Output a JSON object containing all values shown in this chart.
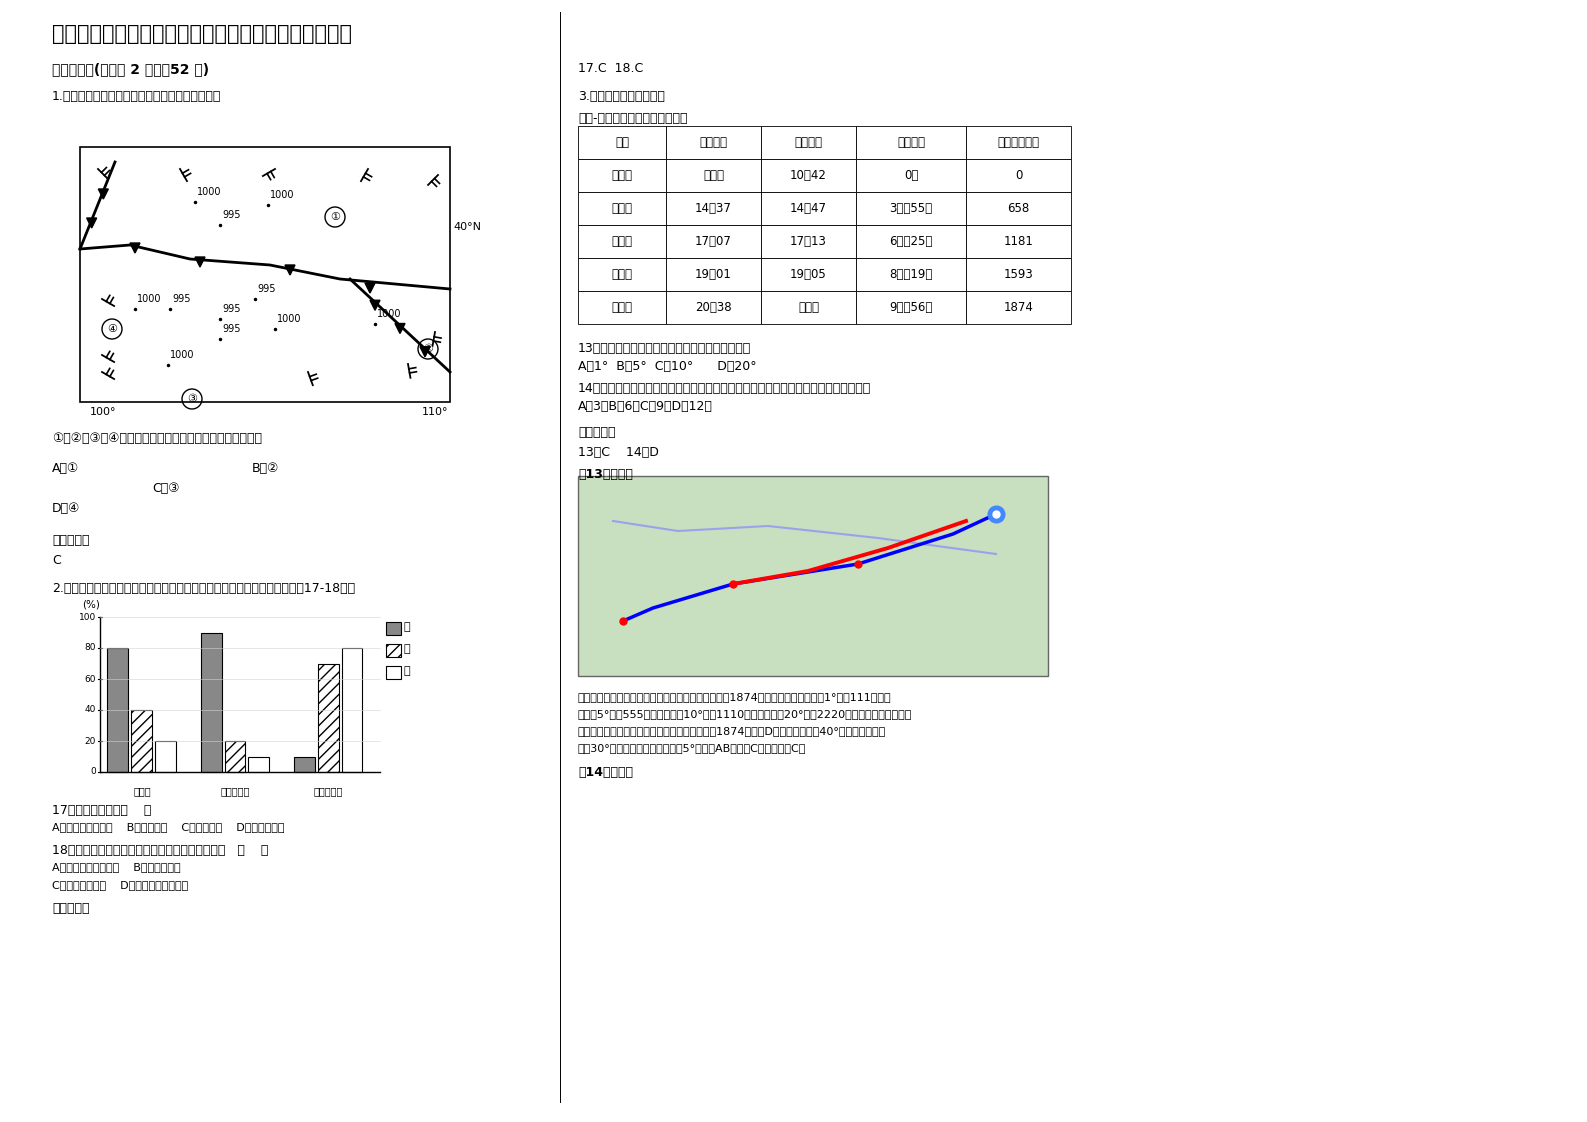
{
  "title": "浙江省组兴市坡塘中学高三地理下学期期末试题含解析",
  "bg_color": "#ffffff",
  "section1_title": "一、选择题(每小题 2 分，內52 分)",
  "q1_text": "1.读下图「某地区某时气压及风向分布图」，回答",
  "q1_options": "①、②、③、④四个地点中，即将出现大风、降温天气的是",
  "q1_A": "A．①",
  "q1_B": "B．②",
  "q1_C": "C．③",
  "q1_D": "D．④",
  "answer1_label": "参考答案：",
  "answer1": "C",
  "q2_text": "2.读图「甲、乙、丙三地农业商品率、畜牧业比重、种植业比重图」，完戕17-18题。",
  "q17_text": "17．甲地可能位于（    ）",
  "q17_A": "A．墨累一达令盆地    B．西欧平原    C．成都平原    D．潘帕斯草原",
  "q18_text": "18．关于乙、丙两地农业地域类型的说法正确的是   （    ）",
  "q18_AB": "A．乙为季风水田农业    B．乙为游牧业",
  "q18_CD": "C．丙为混合农业    D．丙为大牧场放牧业",
  "answer2_label": "参考答案：",
  "ans_17_18": "17.C  18.C",
  "q3_text": "3.读表，回答下面小题。",
  "table_title": "成都-北京某次高铁时刻与里程表",
  "table_headers": [
    "站名",
    "到达时间",
    "开车时间",
    "运行时间",
    "里程（千米）"
  ],
  "table_rows": [
    [
      "成都东",
      "始发站",
      "10：42",
      "0分",
      "0"
    ],
    [
      "西安北",
      "14：37",
      "14：47",
      "3小时55分",
      "658"
    ],
    [
      "郑州东",
      "17：07",
      "17：13",
      "6小时25分",
      "1181"
    ],
    [
      "石家庄",
      "19：01",
      "19：05",
      "8小时19分",
      "1593"
    ],
    [
      "北京西",
      "20：38",
      "终到站",
      "9小时56分",
      "1874"
    ]
  ],
  "q13_text": "13．成都东站与北京西站所处的纬度之差最接近于",
  "q13_opts": "A．1°  B．5°  C．10°      D．20°",
  "q14_text": "14．某日，该次列车驶出郑州东站不久，落日的余晖照亮整个车厢。该日所属月份应为",
  "q14_opts": "A．3月B．6月C．9月D．12月",
  "ans_label": "参考答案：",
  "ans_13_14": "13．C    14．D",
  "detail13_label": "》13题详解《",
  "detail14_label": "》14题详解《",
  "detail_lines": [
    "由表格信息、结合上图可知成都东到北京西的距离为1874千米，根据经线上每隔1°相差111千米，",
    "纬度差5°相差555千米，纬度差10°相差1110千米，纬度差20°相差2220千米，在三角形中，纬",
    "度差为直角三角形的右侧直角边，此边应该小于1874千米，D错误；北京位于40°，成都位于亚热",
    "带（30°附近），纬度差应该大于5°，因此AB错误，C正确。故选C。"
  ]
}
